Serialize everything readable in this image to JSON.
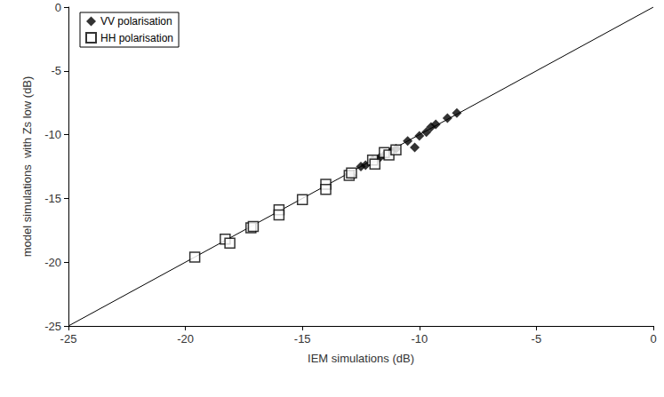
{
  "chart_data": {
    "type": "scatter",
    "x_label": "IEM simulations (dB)",
    "y_label": "model simulations  with Zs low (dB)",
    "xlim": [
      -25,
      0
    ],
    "ylim": [
      -25,
      0
    ],
    "xticks": [
      -25,
      -20,
      -15,
      -10,
      -5,
      0
    ],
    "yticks": [
      -25,
      -20,
      -15,
      -10,
      -5,
      0
    ],
    "grid": false,
    "legend": "upper left",
    "series": [
      {
        "type": "line",
        "color": "#000000",
        "line_style": "solid",
        "x": [
          -25,
          0
        ],
        "values": [
          -25,
          0
        ]
      },
      {
        "name": "VV polarisation",
        "type": "scatter",
        "color": "#000000",
        "marker": "diamond",
        "x": [
          -13.0,
          -12.9,
          -12.5,
          -12.3,
          -12.0,
          -11.7,
          -11.5,
          -11.2,
          -11.0,
          -10.5,
          -10.2,
          -10.0,
          -9.7,
          -9.5,
          -9.3,
          -8.8,
          -8.4
        ],
        "values": [
          -13.1,
          -13.2,
          -12.5,
          -12.4,
          -12.0,
          -11.8,
          -11.6,
          -11.3,
          -11.1,
          -10.5,
          -11.0,
          -10.1,
          -9.8,
          -9.4,
          -9.2,
          -8.7,
          -8.3
        ]
      },
      {
        "name": "HH polarisation",
        "type": "scatter",
        "color": "#000000",
        "marker": "square_open",
        "x": [
          -19.6,
          -18.3,
          -18.1,
          -17.2,
          -17.1,
          -16.0,
          -16.0,
          -15.0,
          -14.0,
          -14.0,
          -13.0,
          -12.9,
          -12.0,
          -11.9,
          -11.5,
          -11.3,
          -11.0
        ],
        "values": [
          -19.6,
          -18.2,
          -18.5,
          -17.3,
          -17.2,
          -15.9,
          -16.3,
          -15.1,
          -13.9,
          -14.3,
          -13.2,
          -13.0,
          -12.0,
          -12.3,
          -11.4,
          -11.6,
          -11.2
        ]
      }
    ]
  }
}
